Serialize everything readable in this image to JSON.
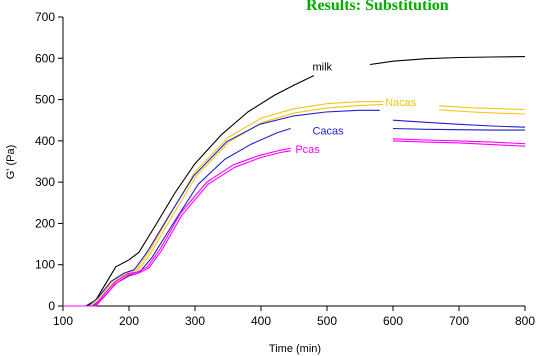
{
  "chart_data": {
    "type": "line",
    "title": "Results: Substitution",
    "xlabel": "Time (min)",
    "ylabel": "G' (Pa)",
    "xlim": [
      100,
      800
    ],
    "ylim": [
      0,
      700
    ],
    "xticks": [
      100,
      200,
      300,
      400,
      500,
      600,
      700,
      800
    ],
    "yticks": [
      0,
      100,
      200,
      300,
      400,
      500,
      600,
      700
    ],
    "grid": false,
    "series": [
      {
        "name": "milk",
        "color": "#000000",
        "segments": [
          [
            [
              100,
              0
            ],
            [
              135,
              0
            ],
            [
              150,
              15
            ],
            [
              165,
              55
            ],
            [
              180,
              95
            ],
            [
              200,
              112
            ],
            [
              215,
              130
            ],
            [
              240,
              195
            ],
            [
              270,
              275
            ],
            [
              300,
              345
            ],
            [
              340,
              415
            ],
            [
              380,
              470
            ],
            [
              420,
              510
            ],
            [
              450,
              535
            ],
            [
              480,
              558
            ]
          ],
          [
            [
              565,
              585
            ],
            [
              600,
              593
            ],
            [
              650,
              599
            ],
            [
              700,
              602
            ],
            [
              750,
              603
            ],
            [
              800,
              604
            ]
          ]
        ]
      },
      {
        "name": "Nacas",
        "color": "#f5c518",
        "segments": [
          [
            [
              100,
              0
            ],
            [
              140,
              0
            ],
            [
              155,
              20
            ],
            [
              175,
              60
            ],
            [
              195,
              78
            ],
            [
              210,
              85
            ],
            [
              230,
              130
            ],
            [
              260,
              215
            ],
            [
              300,
              325
            ],
            [
              350,
              408
            ],
            [
              400,
              455
            ],
            [
              450,
              478
            ],
            [
              500,
              490
            ],
            [
              550,
              495
            ],
            [
              585,
              495
            ]
          ],
          [
            [
              670,
              485
            ],
            [
              720,
              480
            ],
            [
              760,
              478
            ],
            [
              800,
              476
            ]
          ]
        ]
      },
      {
        "name": "Nacas",
        "color": "#f5c518",
        "segments": [
          [
            [
              100,
              0
            ],
            [
              142,
              0
            ],
            [
              157,
              18
            ],
            [
              177,
              58
            ],
            [
              197,
              75
            ],
            [
              212,
              82
            ],
            [
              232,
              125
            ],
            [
              262,
              208
            ],
            [
              302,
              315
            ],
            [
              352,
              398
            ],
            [
              402,
              445
            ],
            [
              452,
              468
            ],
            [
              502,
              480
            ],
            [
              552,
              486
            ],
            [
              585,
              488
            ]
          ],
          [
            [
              670,
              475
            ],
            [
              720,
              470
            ],
            [
              760,
              467
            ],
            [
              800,
              465
            ]
          ]
        ]
      },
      {
        "name": "Cacas",
        "color": "#1f1fcf",
        "segments": [
          [
            [
              100,
              0
            ],
            [
              138,
              0
            ],
            [
              153,
              20
            ],
            [
              173,
              60
            ],
            [
              193,
              80
            ],
            [
              208,
              88
            ],
            [
              228,
              132
            ],
            [
              258,
              212
            ],
            [
              298,
              315
            ],
            [
              348,
              398
            ],
            [
              398,
              440
            ],
            [
              448,
              460
            ],
            [
              498,
              470
            ],
            [
              548,
              474
            ],
            [
              580,
              474
            ]
          ],
          [
            [
              600,
              450
            ],
            [
              650,
              445
            ],
            [
              700,
              440
            ],
            [
              750,
              436
            ],
            [
              800,
              433
            ]
          ]
        ]
      },
      {
        "name": "Cacas",
        "color": "#1f1fcf",
        "segments": [
          [
            [
              100,
              0
            ],
            [
              145,
              0
            ],
            [
              160,
              18
            ],
            [
              180,
              55
            ],
            [
              200,
              73
            ],
            [
              215,
              80
            ],
            [
              235,
              118
            ],
            [
              265,
              195
            ],
            [
              305,
              295
            ],
            [
              345,
              355
            ],
            [
              385,
              392
            ],
            [
              425,
              420
            ],
            [
              445,
              430
            ]
          ],
          [
            [
              600,
              430
            ],
            [
              650,
              428
            ],
            [
              700,
              427
            ],
            [
              750,
              426
            ],
            [
              800,
              426
            ]
          ]
        ]
      },
      {
        "name": "Pcas",
        "color": "#ff00ff",
        "segments": [
          [
            [
              100,
              0
            ],
            [
              148,
              0
            ],
            [
              163,
              30
            ],
            [
              180,
              60
            ],
            [
              198,
              78
            ],
            [
              213,
              82
            ],
            [
              228,
              95
            ],
            [
              248,
              140
            ],
            [
              278,
              225
            ],
            [
              318,
              300
            ],
            [
              358,
              342
            ],
            [
              398,
              365
            ],
            [
              428,
              377
            ],
            [
              445,
              382
            ]
          ],
          [
            [
              600,
              405
            ],
            [
              650,
              402
            ],
            [
              700,
              400
            ],
            [
              750,
              397
            ],
            [
              800,
              393
            ]
          ]
        ]
      },
      {
        "name": "Pcas",
        "color": "#ff00ff",
        "segments": [
          [
            [
              100,
              0
            ],
            [
              150,
              0
            ],
            [
              165,
              28
            ],
            [
              182,
              57
            ],
            [
              200,
              75
            ],
            [
              215,
              80
            ],
            [
              230,
              92
            ],
            [
              250,
              136
            ],
            [
              280,
              220
            ],
            [
              320,
              295
            ],
            [
              360,
              336
            ],
            [
              400,
              360
            ],
            [
              430,
              372
            ],
            [
              445,
              376
            ]
          ],
          [
            [
              600,
              400
            ],
            [
              650,
              397
            ],
            [
              700,
              395
            ],
            [
              750,
              391
            ],
            [
              800,
              387
            ]
          ]
        ]
      }
    ],
    "annotations": [
      {
        "text": "milk",
        "x": 478,
        "y": 570,
        "color": "#000000"
      },
      {
        "text": "Nacas",
        "x": 588,
        "y": 485,
        "color": "#f5c518"
      },
      {
        "text": "Cacas",
        "x": 478,
        "y": 415,
        "color": "#1f1fcf"
      },
      {
        "text": "Pcas",
        "x": 452,
        "y": 370,
        "color": "#ff00ff"
      }
    ]
  }
}
